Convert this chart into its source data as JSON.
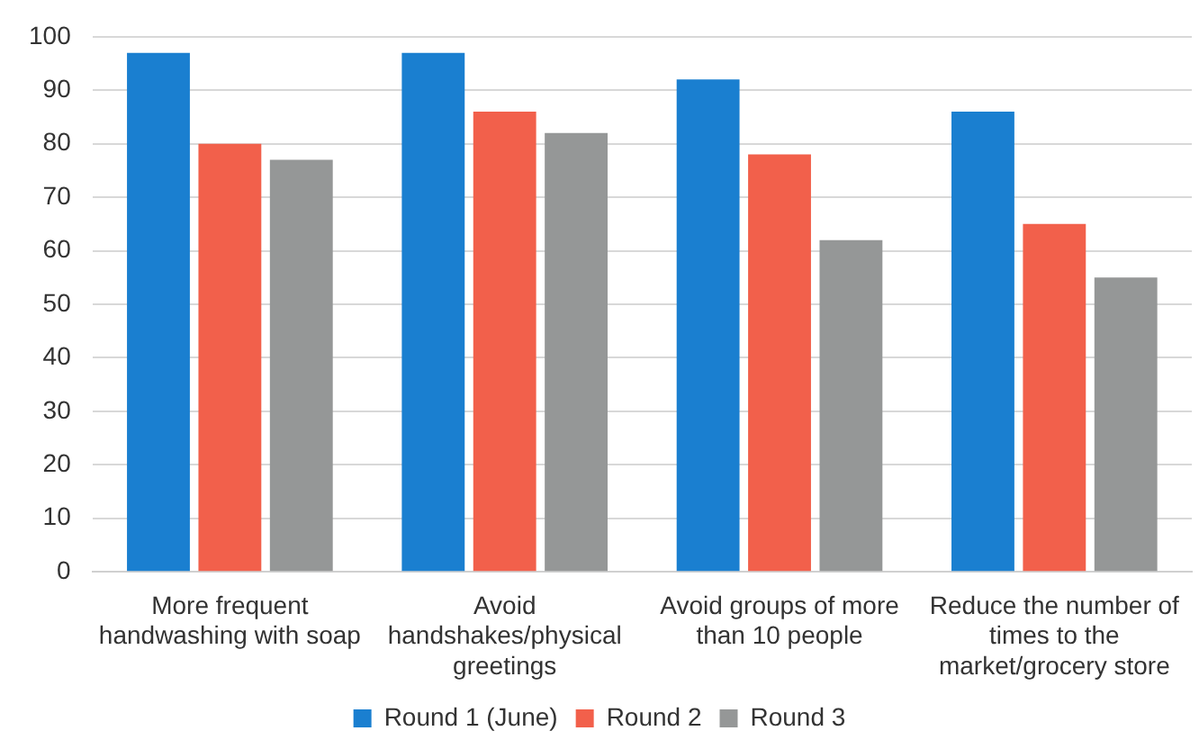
{
  "chart_data": {
    "type": "bar",
    "categories": [
      "More frequent handwashing with soap",
      "Avoid handshakes/physical greetings",
      "Avoid groups of more than 10 people",
      "Reduce the number of times to the market/grocery store"
    ],
    "series": [
      {
        "name": "Round 1 (June)",
        "color": "#1a7fd0",
        "values": [
          97,
          97,
          92,
          86
        ]
      },
      {
        "name": "Round 2",
        "color": "#f2604b",
        "values": [
          80,
          86,
          78,
          65
        ]
      },
      {
        "name": "Round 3",
        "color": "#959797",
        "values": [
          77,
          82,
          62,
          55
        ]
      }
    ],
    "ylim": [
      0,
      100
    ],
    "yticks": [
      0,
      10,
      20,
      30,
      40,
      50,
      60,
      70,
      80,
      90,
      100
    ],
    "grid": "y",
    "legend": "bottom"
  }
}
